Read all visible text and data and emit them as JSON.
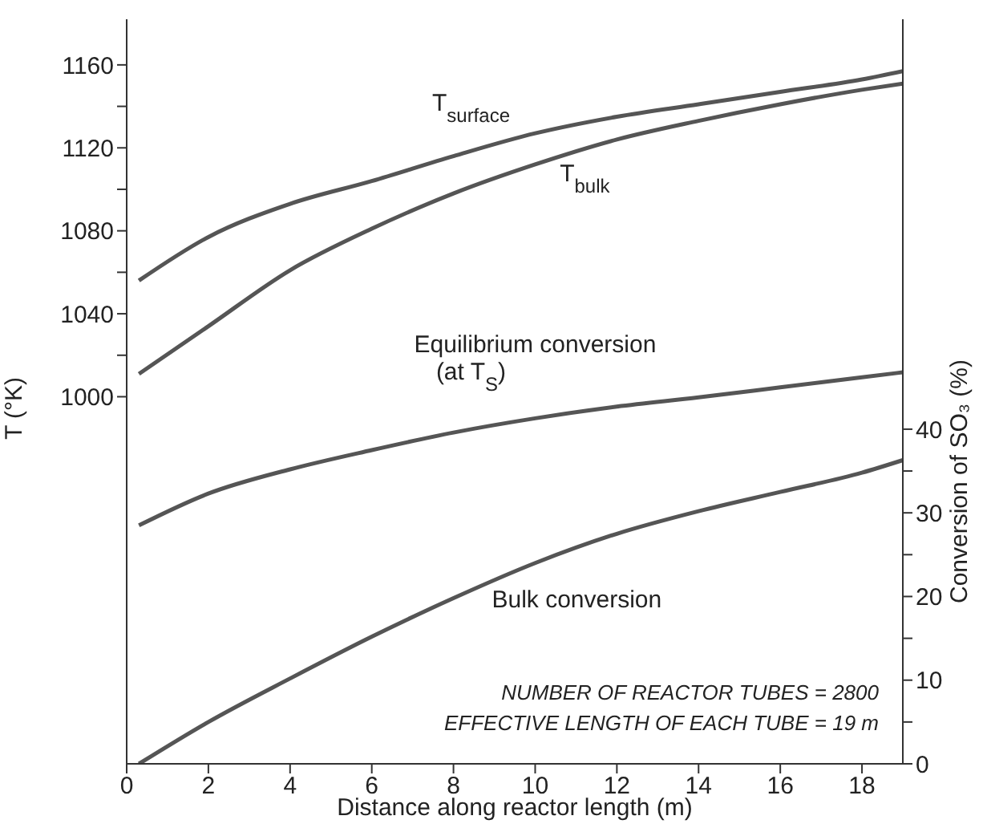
{
  "chart_data": {
    "type": "line",
    "xlabel": "Distance along reactor length (m)",
    "ylabel": "T (°K)",
    "y2label": "Conversion of SO₃ (%)",
    "x": [
      0.3,
      2,
      4,
      6,
      8,
      10,
      12,
      14,
      16,
      18,
      19
    ],
    "series": [
      {
        "name": "T$_{surface}$",
        "color": "#555555",
        "values": [
          1056,
          1077,
          1093,
          1104,
          1116,
          1127,
          1135,
          1141,
          1147,
          1153,
          1157
        ]
      },
      {
        "name": "T$_{bulk}$",
        "color": "#555555",
        "values": [
          1011,
          1034,
          1061,
          1081,
          1098,
          1112,
          1124,
          1133,
          1141,
          1148,
          1151
        ]
      },
      {
        "name": "Equilibrium conversion (at T$_{S}$)",
        "color": "#555555",
        "axis": "y2",
        "values": [
          28.5,
          32.3,
          35.2,
          37.5,
          39.6,
          41.3,
          42.7,
          43.8,
          45,
          46.2,
          46.8
        ]
      },
      {
        "name": "Bulk conversion",
        "color": "#555555",
        "axis": "y2",
        "values": [
          0,
          5,
          10.2,
          15.2,
          19.8,
          24,
          27.5,
          30.2,
          32.5,
          34.8,
          36.3
        ]
      }
    ],
    "xlim": [
      0,
      19
    ],
    "xticks": [
      0,
      2,
      4,
      6,
      8,
      10,
      12,
      14,
      16,
      18
    ],
    "ylim": [
      823,
      1182
    ],
    "yticks": [
      1000,
      {
        "value": 1020,
        "label": null
      },
      1040,
      {
        "value": 1060,
        "label": null
      },
      1080,
      {
        "value": 1100,
        "label": null
      },
      1120,
      {
        "value": 1140,
        "label": null
      },
      1160
    ],
    "y2lim": [
      0,
      89
    ],
    "y2ticks": [
      0,
      {
        "value": 5,
        "label": null
      },
      10,
      {
        "value": 15,
        "label": null
      },
      20,
      {
        "value": 25,
        "label": null
      },
      30,
      {
        "value": 35,
        "label": null
      },
      40
    ],
    "annotations": [
      "NUMBER OF REACTOR TUBES = 2800",
      "EFFECTIVE LENGTH OF EACH TUBE = 19 m"
    ],
    "grid": false,
    "legend": false,
    "marker": "none",
    "line_style": "solid"
  }
}
